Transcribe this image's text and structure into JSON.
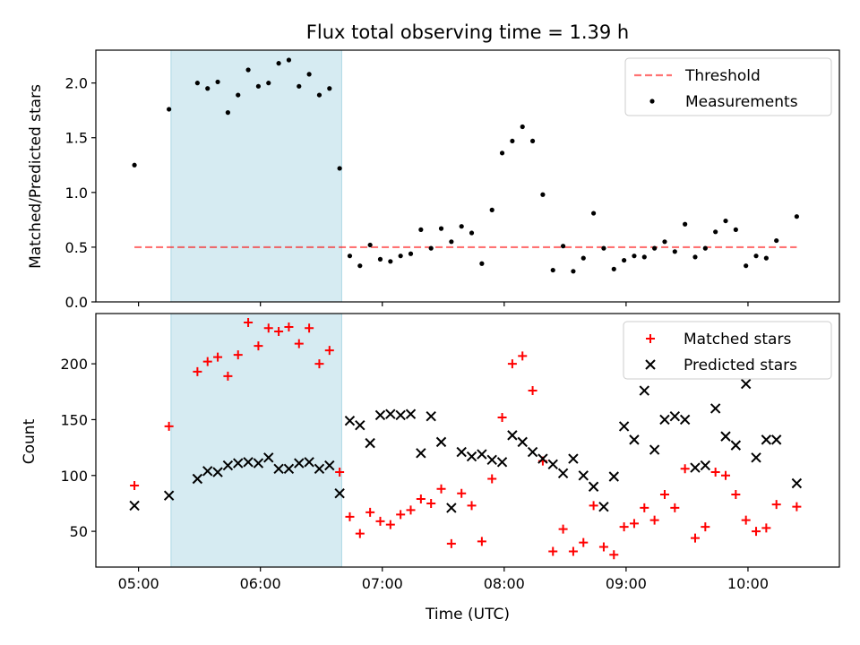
{
  "title": "Flux total observing time = 1.39 h",
  "colors": {
    "shade": "#add8e6",
    "threshold": "#ff0000",
    "measurement": "#000000",
    "matched": "#ff0000",
    "predicted": "#000000"
  },
  "chart_data": [
    {
      "type": "scatter",
      "ylabel": "Matched/Predicted stars",
      "ylim": [
        0,
        2.3
      ],
      "yticks": [
        "0.0",
        "0.5",
        "1.0",
        "1.5",
        "2.0"
      ],
      "shaded_span": [
        "05:16",
        "06:40"
      ],
      "legend": {
        "position": "top-right",
        "entries": [
          "Threshold",
          "Measurements"
        ]
      },
      "threshold": {
        "name": "Threshold",
        "value": 0.5,
        "x_range": [
          "04:58",
          "10:24"
        ]
      },
      "series": [
        {
          "name": "Measurements",
          "points": [
            [
              "04:58",
              1.25
            ],
            [
              "05:15",
              1.76
            ],
            [
              "05:29",
              2.0
            ],
            [
              "05:34",
              1.95
            ],
            [
              "05:39",
              2.01
            ],
            [
              "05:44",
              1.73
            ],
            [
              "05:49",
              1.89
            ],
            [
              "05:54",
              2.12
            ],
            [
              "05:59",
              1.97
            ],
            [
              "06:04",
              2.0
            ],
            [
              "06:09",
              2.18
            ],
            [
              "06:14",
              2.21
            ],
            [
              "06:19",
              1.97
            ],
            [
              "06:24",
              2.08
            ],
            [
              "06:29",
              1.89
            ],
            [
              "06:34",
              1.95
            ],
            [
              "06:39",
              1.22
            ],
            [
              "06:44",
              0.42
            ],
            [
              "06:49",
              0.33
            ],
            [
              "06:54",
              0.52
            ],
            [
              "06:59",
              0.39
            ],
            [
              "07:04",
              0.37
            ],
            [
              "07:09",
              0.42
            ],
            [
              "07:14",
              0.44
            ],
            [
              "07:19",
              0.66
            ],
            [
              "07:24",
              0.49
            ],
            [
              "07:29",
              0.67
            ],
            [
              "07:34",
              0.55
            ],
            [
              "07:39",
              0.69
            ],
            [
              "07:44",
              0.63
            ],
            [
              "07:49",
              0.35
            ],
            [
              "07:54",
              0.84
            ],
            [
              "07:59",
              1.36
            ],
            [
              "08:04",
              1.47
            ],
            [
              "08:09",
              1.6
            ],
            [
              "08:14",
              1.47
            ],
            [
              "08:19",
              0.98
            ],
            [
              "08:24",
              0.29
            ],
            [
              "08:29",
              0.51
            ],
            [
              "08:34",
              0.28
            ],
            [
              "08:39",
              0.4
            ],
            [
              "08:44",
              0.81
            ],
            [
              "08:49",
              0.49
            ],
            [
              "08:54",
              0.3
            ],
            [
              "08:59",
              0.38
            ],
            [
              "09:04",
              0.42
            ],
            [
              "09:09",
              0.41
            ],
            [
              "09:14",
              0.49
            ],
            [
              "09:19",
              0.55
            ],
            [
              "09:24",
              0.46
            ],
            [
              "09:29",
              0.71
            ],
            [
              "09:34",
              0.41
            ],
            [
              "09:39",
              0.49
            ],
            [
              "09:44",
              0.64
            ],
            [
              "09:49",
              0.74
            ],
            [
              "09:54",
              0.66
            ],
            [
              "09:59",
              0.33
            ],
            [
              "10:04",
              0.42
            ],
            [
              "10:09",
              0.4
            ],
            [
              "10:14",
              0.56
            ],
            [
              "10:24",
              0.78
            ]
          ]
        }
      ]
    },
    {
      "type": "scatter",
      "xlabel": "Time (UTC)",
      "ylabel": "Count",
      "ylim": [
        18,
        245
      ],
      "yticks": [
        "50",
        "100",
        "150",
        "200"
      ],
      "xticks": [
        "05:00",
        "06:00",
        "07:00",
        "08:00",
        "09:00",
        "10:00"
      ],
      "xlim": [
        "04:39",
        "10:45"
      ],
      "shaded_span": [
        "05:16",
        "06:40"
      ],
      "legend": {
        "position": "top-right",
        "entries": [
          "Matched stars",
          "Predicted stars"
        ]
      },
      "series": [
        {
          "name": "Matched stars",
          "marker": "plus",
          "points": [
            [
              "04:58",
              91
            ],
            [
              "05:15",
              144
            ],
            [
              "05:29",
              193
            ],
            [
              "05:34",
              202
            ],
            [
              "05:39",
              206
            ],
            [
              "05:44",
              189
            ],
            [
              "05:49",
              208
            ],
            [
              "05:54",
              237
            ],
            [
              "05:59",
              216
            ],
            [
              "06:04",
              232
            ],
            [
              "06:09",
              229
            ],
            [
              "06:14",
              233
            ],
            [
              "06:19",
              218
            ],
            [
              "06:24",
              232
            ],
            [
              "06:29",
              200
            ],
            [
              "06:34",
              212
            ],
            [
              "06:39",
              103
            ],
            [
              "06:44",
              63
            ],
            [
              "06:49",
              48
            ],
            [
              "06:54",
              67
            ],
            [
              "06:59",
              59
            ],
            [
              "07:04",
              56
            ],
            [
              "07:09",
              65
            ],
            [
              "07:14",
              69
            ],
            [
              "07:19",
              79
            ],
            [
              "07:24",
              75
            ],
            [
              "07:29",
              88
            ],
            [
              "07:34",
              39
            ],
            [
              "07:39",
              84
            ],
            [
              "07:44",
              73
            ],
            [
              "07:49",
              41
            ],
            [
              "07:54",
              97
            ],
            [
              "07:59",
              152
            ],
            [
              "08:04",
              200
            ],
            [
              "08:09",
              207
            ],
            [
              "08:14",
              176
            ],
            [
              "08:19",
              113
            ],
            [
              "08:24",
              32
            ],
            [
              "08:29",
              52
            ],
            [
              "08:34",
              32
            ],
            [
              "08:39",
              40
            ],
            [
              "08:44",
              73
            ],
            [
              "08:49",
              36
            ],
            [
              "08:54",
              29
            ],
            [
              "08:59",
              54
            ],
            [
              "09:04",
              57
            ],
            [
              "09:09",
              71
            ],
            [
              "09:14",
              60
            ],
            [
              "09:19",
              83
            ],
            [
              "09:24",
              71
            ],
            [
              "09:29",
              106
            ],
            [
              "09:34",
              44
            ],
            [
              "09:39",
              54
            ],
            [
              "09:44",
              103
            ],
            [
              "09:49",
              100
            ],
            [
              "09:54",
              83
            ],
            [
              "09:59",
              60
            ],
            [
              "10:04",
              50
            ],
            [
              "10:09",
              53
            ],
            [
              "10:14",
              74
            ],
            [
              "10:24",
              72
            ]
          ]
        },
        {
          "name": "Predicted stars",
          "marker": "x",
          "points": [
            [
              "04:58",
              73
            ],
            [
              "05:15",
              82
            ],
            [
              "05:29",
              97
            ],
            [
              "05:34",
              104
            ],
            [
              "05:39",
              103
            ],
            [
              "05:44",
              109
            ],
            [
              "05:49",
              111
            ],
            [
              "05:54",
              112
            ],
            [
              "05:59",
              111
            ],
            [
              "06:04",
              116
            ],
            [
              "06:09",
              106
            ],
            [
              "06:14",
              106
            ],
            [
              "06:19",
              111
            ],
            [
              "06:24",
              112
            ],
            [
              "06:29",
              106
            ],
            [
              "06:34",
              109
            ],
            [
              "06:39",
              84
            ],
            [
              "06:44",
              149
            ],
            [
              "06:49",
              145
            ],
            [
              "06:54",
              129
            ],
            [
              "06:59",
              154
            ],
            [
              "07:04",
              155
            ],
            [
              "07:09",
              154
            ],
            [
              "07:14",
              155
            ],
            [
              "07:19",
              120
            ],
            [
              "07:24",
              153
            ],
            [
              "07:29",
              130
            ],
            [
              "07:34",
              71
            ],
            [
              "07:39",
              121
            ],
            [
              "07:44",
              117
            ],
            [
              "07:49",
              119
            ],
            [
              "07:54",
              114
            ],
            [
              "07:59",
              112
            ],
            [
              "08:04",
              136
            ],
            [
              "08:09",
              130
            ],
            [
              "08:14",
              121
            ],
            [
              "08:19",
              115
            ],
            [
              "08:24",
              110
            ],
            [
              "08:29",
              102
            ],
            [
              "08:34",
              115
            ],
            [
              "08:39",
              100
            ],
            [
              "08:44",
              90
            ],
            [
              "08:49",
              72
            ],
            [
              "08:54",
              99
            ],
            [
              "08:59",
              144
            ],
            [
              "09:04",
              132
            ],
            [
              "09:09",
              176
            ],
            [
              "09:14",
              123
            ],
            [
              "09:19",
              150
            ],
            [
              "09:24",
              153
            ],
            [
              "09:29",
              150
            ],
            [
              "09:34",
              107
            ],
            [
              "09:39",
              109
            ],
            [
              "09:44",
              160
            ],
            [
              "09:49",
              135
            ],
            [
              "09:54",
              127
            ],
            [
              "09:59",
              182
            ],
            [
              "10:04",
              116
            ],
            [
              "10:09",
              132
            ],
            [
              "10:14",
              132
            ],
            [
              "10:24",
              93
            ]
          ]
        }
      ]
    }
  ]
}
